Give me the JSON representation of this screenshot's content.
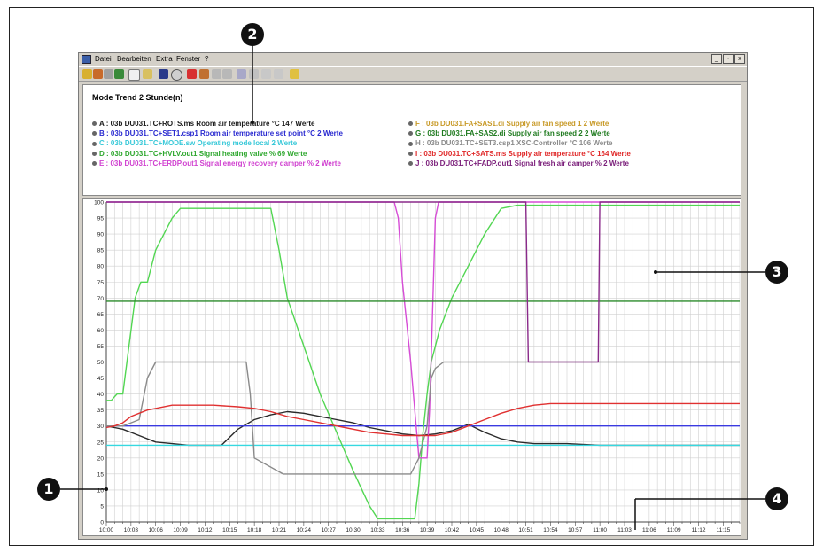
{
  "menu": [
    "Datei",
    "Bearbeiten",
    "Extra",
    "Fenster",
    "?"
  ],
  "window_controls": [
    "_",
    "·",
    "x"
  ],
  "panel_title": "Mode Trend 2 Stunde(n)",
  "legend_left": [
    {
      "text": "A : 03b   DU031.TC+ROTS.ms   Room air temperature °C  147 Werte",
      "color": "#1a1a1a"
    },
    {
      "text": "B : 03b   DU031.TC+SET1.csp1  Room air temperature set point °C  2 Werte",
      "color": "#2a2ad0"
    },
    {
      "text": "C : 03b   DU031.TC+MODE.sw   Operating mode local   2 Werte",
      "color": "#36c8d8"
    },
    {
      "text": "D : 03b   DU031.TC+HVLV.out1  Signal heating valve %  69 Werte",
      "color": "#2fa82f"
    },
    {
      "text": "E : 03b   DU031.TC+ERDP.out1  Signal energy recovery damper %  2 Werte",
      "color": "#d040d0"
    }
  ],
  "legend_right": [
    {
      "text": "F : 03b   DU031.FA+SAS1.di   Supply air fan speed 1   2 Werte",
      "color": "#c89a28"
    },
    {
      "text": "G : 03b   DU031.FA+SAS2.di   Supply air fan speed 2   2 Werte",
      "color": "#1e7a1e"
    },
    {
      "text": "H : 03b   DU031.TC+SET3.csp1  XSC-Controller °C  106 Werte",
      "color": "#8a8a8a"
    },
    {
      "text": "I : 03b   DU031.TC+SATS.ms   Supply air temperature °C  164 Werte",
      "color": "#e02828"
    },
    {
      "text": "J : 03b   DU031.TC+FADP.out1  Signal fresh air damper %  2 Werte",
      "color": "#7a1e7a"
    }
  ],
  "callouts": [
    "1",
    "2",
    "3",
    "4"
  ],
  "chart_data": {
    "type": "line",
    "ylim": [
      0,
      100
    ],
    "y_ticks": [
      0,
      5,
      10,
      15,
      20,
      25,
      30,
      35,
      40,
      45,
      50,
      55,
      60,
      65,
      70,
      75,
      80,
      85,
      90,
      95,
      100
    ],
    "x_ticks": [
      "10:00",
      "10:03",
      "10:06",
      "10:09",
      "10:12",
      "10:15",
      "10:18",
      "10:21",
      "10:24",
      "10:27",
      "10:30",
      "10:33",
      "10:36",
      "10:39",
      "10:42",
      "10:45",
      "10:48",
      "10:51",
      "10:54",
      "10:57",
      "11:00",
      "11:03",
      "11:06",
      "11:09",
      "11:12",
      "11:15"
    ],
    "x_range_minutes": [
      0,
      77
    ],
    "grid": true,
    "series": [
      {
        "name": "A",
        "color": "#2a2a2a",
        "x": [
          0,
          2,
          4,
          6,
          8,
          10,
          12,
          14,
          16,
          18,
          20,
          22,
          24,
          26,
          28,
          30,
          32,
          34,
          36,
          38,
          40,
          42,
          44,
          46,
          48,
          50,
          52,
          56,
          60,
          64,
          68,
          72,
          77
        ],
        "y": [
          30,
          29,
          27,
          25,
          24.5,
          24,
          24,
          24,
          29,
          32,
          33.5,
          34.5,
          34,
          33,
          32,
          31,
          29.5,
          28.5,
          27.5,
          27,
          27.5,
          28.5,
          30.5,
          28,
          26,
          25,
          24.5,
          24.5,
          24,
          24,
          24,
          24,
          24
        ]
      },
      {
        "name": "B",
        "color": "#3a3ae0",
        "x": [
          0,
          77
        ],
        "y": [
          30,
          30
        ]
      },
      {
        "name": "C",
        "color": "#36d8e0",
        "x": [
          0,
          77
        ],
        "y": [
          24,
          24
        ]
      },
      {
        "name": "D",
        "color": "#52d652",
        "x": [
          0,
          0.6,
          1.3,
          2,
          3,
          3.5,
          4.2,
          5,
          6,
          7,
          8,
          9,
          20,
          21,
          22,
          24,
          26,
          28,
          30,
          32,
          33,
          36,
          37.5,
          38,
          38.5,
          39,
          39.5,
          40.5,
          42,
          44,
          46,
          48,
          50,
          52,
          77
        ],
        "y": [
          38,
          38,
          40,
          40,
          60,
          70,
          75,
          75,
          85,
          90,
          95,
          98,
          98,
          85,
          70,
          55,
          40,
          28,
          16,
          5,
          1,
          1,
          1,
          12,
          28,
          40,
          50,
          60,
          70,
          80,
          90,
          98,
          99,
          99,
          99
        ]
      },
      {
        "name": "E",
        "color": "#d64cd6",
        "x": [
          0,
          35,
          35.5,
          36,
          37,
          37.5,
          38,
          38.5,
          39,
          39.3,
          39.6,
          40,
          40.4,
          77
        ],
        "y": [
          100,
          100,
          95,
          75,
          50,
          35,
          20,
          20,
          20,
          35,
          60,
          95,
          100,
          100
        ]
      },
      {
        "name": "G",
        "color": "#2a8a2a",
        "x": [
          0,
          77
        ],
        "y": [
          69,
          69
        ]
      },
      {
        "name": "H",
        "color": "#8a8a8a",
        "x": [
          0,
          2,
          3,
          4,
          5,
          6,
          16,
          17,
          17.5,
          18,
          21.5,
          29,
          37,
          38,
          39,
          39.5,
          40,
          41,
          42,
          77
        ],
        "y": [
          30,
          30,
          31,
          32,
          45,
          50,
          50,
          50,
          40,
          20,
          15,
          15,
          15,
          20,
          30,
          45,
          48,
          50,
          50,
          50
        ]
      },
      {
        "name": "I",
        "color": "#e03030",
        "x": [
          0,
          1,
          2,
          3,
          5,
          8,
          10,
          13,
          16,
          18,
          20,
          22,
          24,
          26,
          28,
          30,
          32,
          34,
          36,
          38,
          40,
          42,
          44,
          46,
          48,
          50,
          52,
          54,
          58,
          62,
          66,
          70,
          77
        ],
        "y": [
          29.5,
          30,
          31,
          33,
          35,
          36.5,
          36.5,
          36.5,
          36,
          35.5,
          34.5,
          33,
          32,
          31,
          30,
          29,
          28,
          27.5,
          27,
          27,
          27,
          28,
          30,
          32,
          34,
          35.5,
          36.5,
          37,
          37,
          37,
          37,
          37,
          37
        ]
      },
      {
        "name": "J",
        "color": "#8a2a8a",
        "x": [
          0,
          50,
          51,
          51.3,
          54,
          59,
          59.8,
          60,
          77
        ],
        "y": [
          100,
          100,
          100,
          50,
          50,
          50,
          50,
          100,
          100
        ]
      }
    ]
  }
}
